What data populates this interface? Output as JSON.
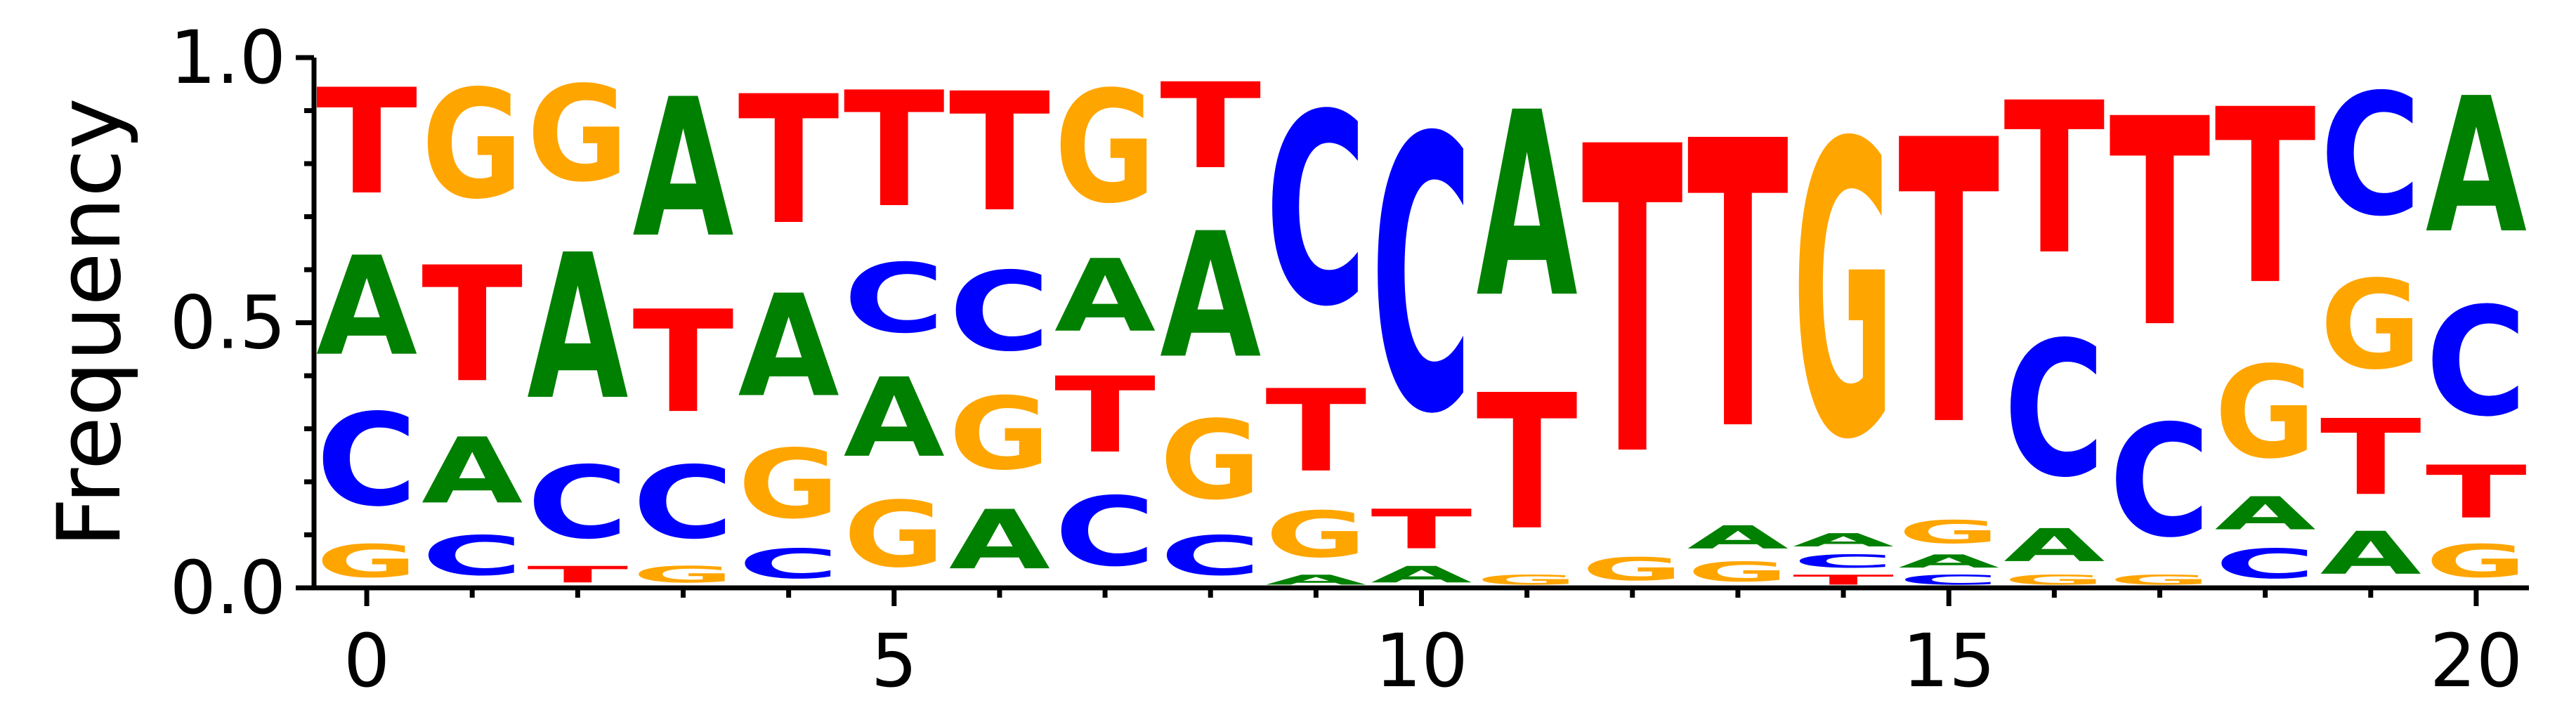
{
  "chart_data": {
    "type": "sequence_logo",
    "title": "",
    "xlabel": "",
    "ylabel": "Frequency",
    "ylim": [
      0,
      1
    ],
    "xlim": [
      -0.5,
      20.5
    ],
    "y_ticks": [
      0.0,
      0.5,
      1.0
    ],
    "y_tick_labels": [
      "0.0",
      "0.5",
      "1.0"
    ],
    "x_ticks": [
      0,
      5,
      10,
      15,
      20
    ],
    "x_tick_labels": [
      "0",
      "5",
      "10",
      "15",
      "20"
    ],
    "colors": {
      "A": "#008000",
      "C": "#0000FF",
      "G": "#FFA500",
      "T": "#FF0000"
    },
    "positions": [
      {
        "pos": 0,
        "stack": [
          [
            "G",
            0.1
          ],
          [
            "C",
            0.28
          ],
          [
            "A",
            0.3
          ],
          [
            "T",
            0.32
          ]
        ]
      },
      {
        "pos": 1,
        "stack": [
          [
            "C",
            0.12
          ],
          [
            "A",
            0.2
          ],
          [
            "T",
            0.35
          ],
          [
            "G",
            0.33
          ]
        ]
      },
      {
        "pos": 2,
        "stack": [
          [
            "T",
            0.05
          ],
          [
            "C",
            0.22
          ],
          [
            "A",
            0.44
          ],
          [
            "G",
            0.29
          ]
        ]
      },
      {
        "pos": 3,
        "stack": [
          [
            "G",
            0.05
          ],
          [
            "C",
            0.22
          ],
          [
            "T",
            0.31
          ],
          [
            "A",
            0.42
          ]
        ]
      },
      {
        "pos": 4,
        "stack": [
          [
            "C",
            0.09
          ],
          [
            "G",
            0.21
          ],
          [
            "A",
            0.31
          ],
          [
            "T",
            0.39
          ]
        ]
      },
      {
        "pos": 5,
        "stack": [
          [
            "G",
            0.2
          ],
          [
            "A",
            0.24
          ],
          [
            "C",
            0.21
          ],
          [
            "T",
            0.35
          ]
        ]
      },
      {
        "pos": 6,
        "stack": [
          [
            "A",
            0.18
          ],
          [
            "G",
            0.22
          ],
          [
            "C",
            0.24
          ],
          [
            "T",
            0.36
          ]
        ]
      },
      {
        "pos": 7,
        "stack": [
          [
            "C",
            0.21
          ],
          [
            "T",
            0.23
          ],
          [
            "A",
            0.22
          ],
          [
            "G",
            0.34
          ]
        ]
      },
      {
        "pos": 8,
        "stack": [
          [
            "C",
            0.12
          ],
          [
            "G",
            0.24
          ],
          [
            "A",
            0.38
          ],
          [
            "T",
            0.26
          ]
        ]
      },
      {
        "pos": 9,
        "stack": [
          [
            "A",
            0.03
          ],
          [
            "G",
            0.14
          ],
          [
            "T",
            0.25
          ],
          [
            "C",
            0.58
          ]
        ]
      },
      {
        "pos": 10,
        "stack": [
          [
            "A",
            0.05
          ],
          [
            "T",
            0.12
          ],
          [
            "C",
            0.83
          ]
        ]
      },
      {
        "pos": 11,
        "stack": [
          [
            "G",
            0.03
          ],
          [
            "T",
            0.41
          ],
          [
            "A",
            0.56
          ]
        ]
      },
      {
        "pos": 12,
        "stack": [
          [
            "G",
            0.07
          ],
          [
            "T",
            0.93
          ]
        ]
      },
      {
        "pos": 13,
        "stack": [
          [
            "G",
            0.06
          ],
          [
            "A",
            0.07
          ],
          [
            "T",
            0.87
          ]
        ]
      },
      {
        "pos": 14,
        "stack": [
          [
            "T",
            0.03
          ],
          [
            "C",
            0.04
          ],
          [
            "A",
            0.04
          ],
          [
            "G",
            0.89
          ]
        ]
      },
      {
        "pos": 15,
        "stack": [
          [
            "C",
            0.03
          ],
          [
            "A",
            0.04
          ],
          [
            "G",
            0.07
          ],
          [
            "T",
            0.86
          ]
        ]
      },
      {
        "pos": 16,
        "stack": [
          [
            "G",
            0.03
          ],
          [
            "A",
            0.1
          ],
          [
            "C",
            0.41
          ],
          [
            "T",
            0.46
          ]
        ]
      },
      {
        "pos": 17,
        "stack": [
          [
            "G",
            0.03
          ],
          [
            "C",
            0.34
          ],
          [
            "T",
            0.63
          ]
        ]
      },
      {
        "pos": 18,
        "stack": [
          [
            "C",
            0.09
          ],
          [
            "A",
            0.1
          ],
          [
            "G",
            0.28
          ],
          [
            "T",
            0.53
          ]
        ]
      },
      {
        "pos": 19,
        "stack": [
          [
            "A",
            0.13
          ],
          [
            "T",
            0.23
          ],
          [
            "G",
            0.27
          ],
          [
            "C",
            0.37
          ]
        ]
      },
      {
        "pos": 20,
        "stack": [
          [
            "G",
            0.1
          ],
          [
            "T",
            0.16
          ],
          [
            "C",
            0.33
          ],
          [
            "A",
            0.41
          ]
        ]
      }
    ]
  }
}
